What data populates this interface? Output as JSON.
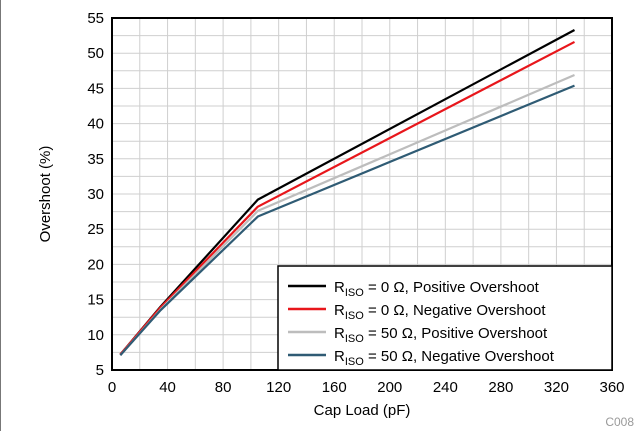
{
  "chart_data": {
    "type": "line",
    "xlabel": "Cap Load (pF)",
    "ylabel": "Overshoot (%)",
    "xlim": [
      0,
      360
    ],
    "ylim": [
      5,
      55
    ],
    "x_ticks": [
      0,
      40,
      80,
      120,
      160,
      200,
      240,
      280,
      320,
      360
    ],
    "y_ticks": [
      5,
      10,
      15,
      20,
      25,
      30,
      35,
      40,
      45,
      50,
      55
    ],
    "x_minor_step": 20,
    "y_minor_step": 2.5,
    "grid": true,
    "legend_position": "bottom-right",
    "figure_code": "C008",
    "series": [
      {
        "name": "R_ISO = 0 Ω, Positive Overshoot",
        "legend_main": "R",
        "legend_sub": "ISO",
        "legend_rest": " = 0 Ω, Positive Overshoot",
        "color": "#000000",
        "x": [
          6,
          35,
          105,
          333
        ],
        "y": [
          7.2,
          14.0,
          29.2,
          53.3
        ]
      },
      {
        "name": "R_ISO = 0 Ω, Negative Overshoot",
        "legend_main": "R",
        "legend_sub": "ISO",
        "legend_rest": " = 0 Ω, Negative Overshoot",
        "color": "#e8161b",
        "x": [
          6,
          35,
          105,
          333
        ],
        "y": [
          7.2,
          13.9,
          28.2,
          51.6
        ]
      },
      {
        "name": "R_ISO = 50 Ω, Positive Overshoot",
        "legend_main": "R",
        "legend_sub": "ISO",
        "legend_rest": " = 50 Ω, Positive Overshoot",
        "color": "#bdbdbd",
        "x": [
          6,
          35,
          105,
          333
        ],
        "y": [
          7.1,
          13.6,
          27.6,
          46.9
        ]
      },
      {
        "name": "R_ISO = 50 Ω, Negative Overshoot",
        "legend_main": "R",
        "legend_sub": "ISO",
        "legend_rest": " = 50 Ω, Negative Overshoot",
        "color": "#2f5b74",
        "x": [
          6,
          35,
          105,
          333
        ],
        "y": [
          7.1,
          13.5,
          26.8,
          45.4
        ]
      }
    ]
  }
}
